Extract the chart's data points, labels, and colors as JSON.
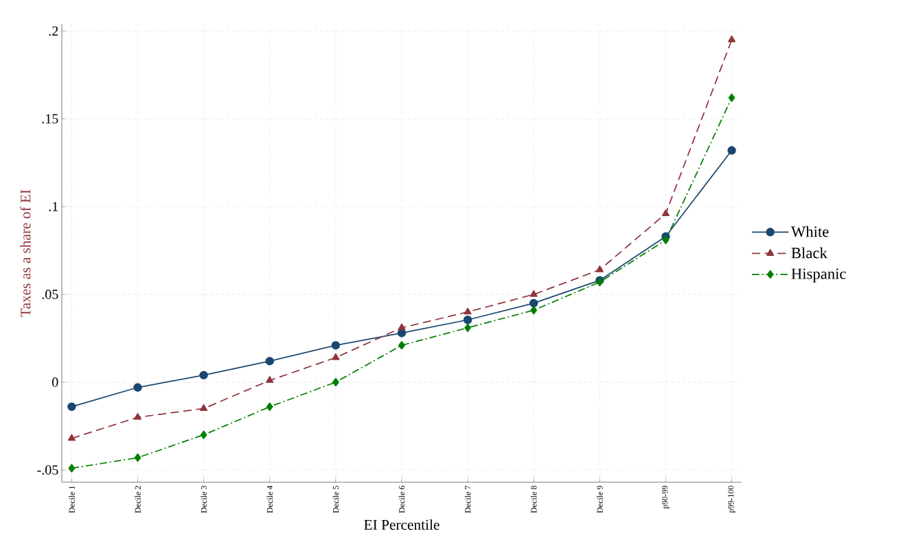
{
  "chart_data": {
    "type": "line",
    "xlabel": "EI Percentile",
    "ylabel": "Taxes as a share of EI",
    "categories": [
      "Decile 1",
      "Decile 2",
      "Decile 3",
      "Decile 4",
      "Decile 5",
      "Decile 6",
      "Decile 7",
      "Decile 8",
      "Decile 9",
      "p90-99",
      "p99-100"
    ],
    "series": [
      {
        "name": "White",
        "color": "#1a476f",
        "marker": "circle",
        "line_style": "solid",
        "values": [
          -0.014,
          -0.003,
          0.004,
          0.012,
          0.021,
          0.028,
          0.0355,
          0.045,
          0.058,
          0.083,
          0.132
        ]
      },
      {
        "name": "Black",
        "color": "#90353b",
        "marker": "triangle",
        "line_style": "dashed",
        "values": [
          -0.032,
          -0.02,
          -0.015,
          0.001,
          0.014,
          0.031,
          0.04,
          0.05,
          0.064,
          0.096,
          0.195
        ]
      },
      {
        "name": "Hispanic",
        "color": "#008000",
        "marker": "diamond",
        "line_style": "dashdot",
        "values": [
          -0.049,
          -0.043,
          -0.03,
          -0.014,
          0.0,
          0.021,
          0.031,
          0.041,
          0.057,
          0.081,
          0.162
        ]
      }
    ],
    "ylim": [
      -0.057,
      0.204
    ],
    "yticks": [
      {
        "value": -0.05,
        "label": "-.05"
      },
      0,
      {
        "value": 0.05,
        "label": ".05"
      },
      {
        "value": 0.1,
        "label": ".1"
      },
      {
        "value": 0.15,
        "label": ".15"
      },
      {
        "value": 0.2,
        "label": ".2"
      }
    ],
    "grid": true,
    "legend": "right"
  }
}
